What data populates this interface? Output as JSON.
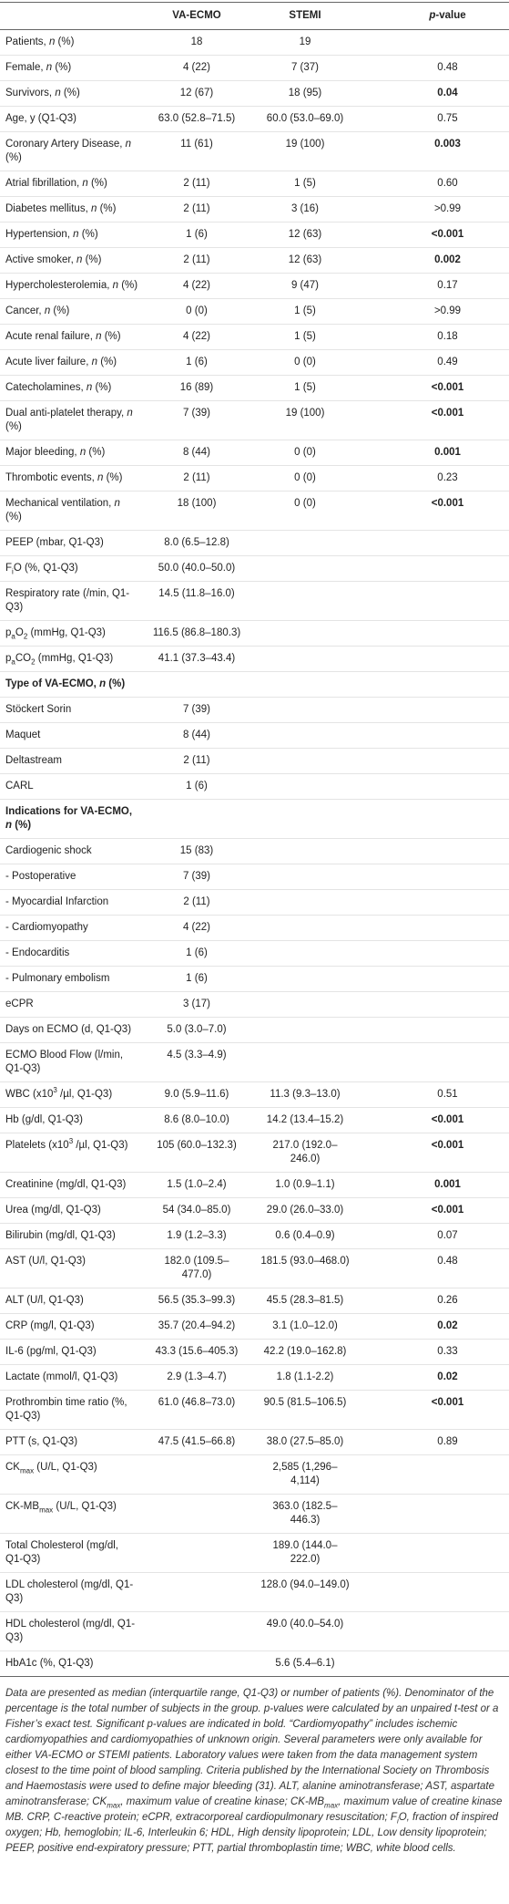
{
  "table": {
    "header": [
      "",
      "VA-ECMO",
      "STEMI",
      [
        {
          "i": "p"
        },
        "-value"
      ]
    ],
    "rows": [
      [
        [
          "Patients, ",
          {
            "i": "n"
          },
          " (%)"
        ],
        "18",
        "19",
        null
      ],
      [
        [
          "Female, ",
          {
            "i": "n"
          },
          " (%)"
        ],
        "4 (22)",
        "7 (37)",
        "0.48"
      ],
      [
        [
          "Survivors, ",
          {
            "i": "n"
          },
          " (%)"
        ],
        "12 (67)",
        "18 (95)",
        {
          "b": "0.04"
        }
      ],
      [
        "Age, y (Q1-Q3)",
        "63.0 (52.8–71.5)",
        "60.0 (53.0–69.0)",
        "0.75"
      ],
      [
        [
          "Coronary Artery Disease, ",
          {
            "i": "n"
          },
          " (%)"
        ],
        "11 (61)",
        "19 (100)",
        {
          "b": "0.003"
        }
      ],
      [
        [
          "Atrial fibrillation, ",
          {
            "i": "n"
          },
          " (%)"
        ],
        "2 (11)",
        "1 (5)",
        "0.60"
      ],
      [
        [
          "Diabetes mellitus, ",
          {
            "i": "n"
          },
          " (%)"
        ],
        "2 (11)",
        "3 (16)",
        ">0.99"
      ],
      [
        [
          "Hypertension, ",
          {
            "i": "n"
          },
          " (%)"
        ],
        "1 (6)",
        "12 (63)",
        {
          "b": "<0.001"
        }
      ],
      [
        [
          "Active smoker, ",
          {
            "i": "n"
          },
          " (%)"
        ],
        "2 (11)",
        "12 (63)",
        {
          "b": "0.002"
        }
      ],
      [
        [
          "Hypercholesterolemia, ",
          {
            "i": "n"
          },
          " (%)"
        ],
        "4 (22)",
        "9 (47)",
        "0.17"
      ],
      [
        [
          "Cancer, ",
          {
            "i": "n"
          },
          " (%)"
        ],
        "0 (0)",
        "1 (5)",
        ">0.99"
      ],
      [
        [
          "Acute renal failure, ",
          {
            "i": "n"
          },
          " (%)"
        ],
        "4 (22)",
        "1 (5)",
        "0.18"
      ],
      [
        [
          "Acute liver failure, ",
          {
            "i": "n"
          },
          " (%)"
        ],
        "1 (6)",
        "0 (0)",
        "0.49"
      ],
      [
        [
          "Catecholamines, ",
          {
            "i": "n"
          },
          " (%)"
        ],
        "16 (89)",
        "1 (5)",
        {
          "b": "<0.001"
        }
      ],
      [
        [
          "Dual anti-platelet therapy, ",
          {
            "i": "n"
          },
          " (%)"
        ],
        "7 (39)",
        "19 (100)",
        {
          "b": "<0.001"
        }
      ],
      [
        [
          "Major bleeding, ",
          {
            "i": "n"
          },
          " (%)"
        ],
        "8 (44)",
        "0 (0)",
        {
          "b": "0.001"
        }
      ],
      [
        [
          "Thrombotic events, ",
          {
            "i": "n"
          },
          " (%)"
        ],
        "2 (11)",
        "0 (0)",
        "0.23"
      ],
      [
        [
          "Mechanical ventilation, ",
          {
            "i": "n"
          },
          " (%)"
        ],
        "18 (100)",
        "0 (0)",
        {
          "b": "<0.001"
        }
      ],
      [
        "PEEP (mbar, Q1-Q3)",
        "8.0 (6.5–12.8)",
        null,
        null
      ],
      [
        [
          "F",
          {
            "sub": "i"
          },
          "O (%, Q1-Q3)"
        ],
        "50.0 (40.0–50.0)",
        null,
        null
      ],
      [
        "Respiratory rate (/min, Q1-Q3)",
        "14.5 (11.8–16.0)",
        null,
        null
      ],
      [
        [
          "p",
          {
            "sub": "a"
          },
          "O",
          {
            "sub": "2"
          },
          " (mmHg, Q1-Q3)"
        ],
        "116.5 (86.8–180.3)",
        null,
        null
      ],
      [
        [
          "p",
          {
            "sub": "a"
          },
          "CO",
          {
            "sub": "2"
          },
          " (mmHg, Q1-Q3)"
        ],
        "41.1 (37.3–43.4)",
        null,
        null
      ],
      [
        {
          "b": [
            "Type of VA-ECMO, ",
            {
              "i": "n"
            },
            " (%)"
          ]
        },
        null,
        null,
        null
      ],
      [
        "Stöckert Sorin",
        "7 (39)",
        null,
        null
      ],
      [
        "Maquet",
        "8 (44)",
        null,
        null
      ],
      [
        "Deltastream",
        "2 (11)",
        null,
        null
      ],
      [
        "CARL",
        "1 (6)",
        null,
        null
      ],
      [
        {
          "b": [
            "Indications for VA-ECMO, ",
            {
              "i": "n"
            },
            " (%)"
          ]
        },
        null,
        null,
        null
      ],
      [
        "Cardiogenic shock",
        "15 (83)",
        null,
        null
      ],
      [
        "- Postoperative",
        "7 (39)",
        null,
        null
      ],
      [
        "- Myocardial Infarction",
        "2 (11)",
        null,
        null
      ],
      [
        "- Cardiomyopathy",
        "4 (22)",
        null,
        null
      ],
      [
        "- Endocarditis",
        "1 (6)",
        null,
        null
      ],
      [
        "- Pulmonary embolism",
        "1 (6)",
        null,
        null
      ],
      [
        "eCPR",
        "3 (17)",
        null,
        null
      ],
      [
        "Days on ECMO (d, Q1-Q3)",
        "5.0 (3.0–7.0)",
        null,
        null
      ],
      [
        "ECMO Blood Flow (l/min, Q1-Q3)",
        "4.5 (3.3–4.9)",
        null,
        null
      ],
      [
        [
          "WBC (x10",
          {
            "sup": "3"
          },
          " /µl, Q1-Q3)"
        ],
        "9.0 (5.9–11.6)",
        "11.3 (9.3–13.0)",
        "0.51"
      ],
      [
        "Hb (g/dl, Q1-Q3)",
        "8.6 (8.0–10.0)",
        "14.2 (13.4–15.2)",
        {
          "b": "<0.001"
        }
      ],
      [
        [
          "Platelets (x10",
          {
            "sup": "3"
          },
          " /µl, Q1-Q3)"
        ],
        "105 (60.0–132.3)",
        "217.0 (192.0–246.0)",
        {
          "b": "<0.001"
        }
      ],
      [
        "Creatinine (mg/dl, Q1-Q3)",
        "1.5 (1.0–2.4)",
        "1.0 (0.9–1.1)",
        {
          "b": "0.001"
        }
      ],
      [
        "Urea (mg/dl, Q1-Q3)",
        "54 (34.0–85.0)",
        "29.0 (26.0–33.0)",
        {
          "b": "<0.001"
        }
      ],
      [
        "Bilirubin (mg/dl, Q1-Q3)",
        "1.9 (1.2–3.3)",
        "0.6 (0.4–0.9)",
        "0.07"
      ],
      [
        "AST (U/l, Q1-Q3)",
        "182.0 (109.5–477.0)",
        "181.5 (93.0–468.0)",
        "0.48"
      ],
      [
        "ALT (U/l, Q1-Q3)",
        "56.5 (35.3–99.3)",
        "45.5 (28.3–81.5)",
        "0.26"
      ],
      [
        "CRP (mg/l, Q1-Q3)",
        "35.7 (20.4–94.2)",
        "3.1 (1.0–12.0)",
        {
          "b": "0.02"
        }
      ],
      [
        "IL-6 (pg/ml, Q1-Q3)",
        "43.3 (15.6–405.3)",
        "42.2 (19.0–162.8)",
        "0.33"
      ],
      [
        "Lactate (mmol/l, Q1-Q3)",
        "2.9 (1.3–4.7)",
        "1.8 (1.1-2.2)",
        {
          "b": "0.02"
        }
      ],
      [
        "Prothrombin time ratio (%, Q1-Q3)",
        "61.0 (46.8–73.0)",
        "90.5 (81.5–106.5)",
        {
          "b": "<0.001"
        }
      ],
      [
        "PTT (s, Q1-Q3)",
        "47.5 (41.5–66.8)",
        "38.0 (27.5–85.0)",
        "0.89"
      ],
      [
        [
          "CK",
          {
            "sub": "max"
          },
          " (U/L, Q1-Q3)"
        ],
        null,
        "2,585 (1,296–4,114)",
        null
      ],
      [
        [
          "CK-MB",
          {
            "sub": "max"
          },
          " (U/L, Q1-Q3)"
        ],
        null,
        "363.0 (182.5–446.3)",
        null
      ],
      [
        "Total Cholesterol (mg/dl, Q1-Q3)",
        null,
        "189.0 (144.0–222.0)",
        null
      ],
      [
        "LDL cholesterol (mg/dl, Q1-Q3)",
        null,
        "128.0 (94.0–149.0)",
        null
      ],
      [
        "HDL cholesterol (mg/dl, Q1-Q3)",
        null,
        "49.0 (40.0–54.0)",
        null
      ],
      [
        "HbA1c (%, Q1-Q3)",
        null,
        "5.6 (5.4–6.1)",
        null
      ]
    ],
    "footnote": [
      "Data are presented as median (interquartile range, Q1-Q3) or number of patients (%). Denominator of the percentage is the total number of subjects in the group. p-values were calculated by an unpaired t-test or a Fisher’s exact test. Significant p-values are indicated in bold. “Cardiomyopathy” includes ischemic cardiomyopathies and cardiomyopathies of unknown origin. Several parameters were only available for either VA-ECMO or STEMI patients. Laboratory values were taken from the data management system closest to the time point of blood sampling. Criteria published by the International Society on Thrombosis and Haemostasis were used to define major bleeding (31). ALT, alanine aminotransferase; AST, aspartate aminotransferase; CK",
      {
        "sub": "max"
      },
      ", maximum value of creatine kinase; CK-MB",
      {
        "sub": "max"
      },
      ", maximum value of creatine kinase MB. CRP, C-reactive protein; eCPR, extracorporeal cardiopulmonary resuscitation; F",
      {
        "sub": "i"
      },
      "O, fraction of inspired oxygen; Hb, hemoglobin; IL-6, Interleukin 6; HDL, High density lipoprotein; LDL, Low density lipoprotein; PEEP, positive end-expiratory pressure; PTT, partial thromboplastin time; WBC, white blood cells."
    ]
  }
}
